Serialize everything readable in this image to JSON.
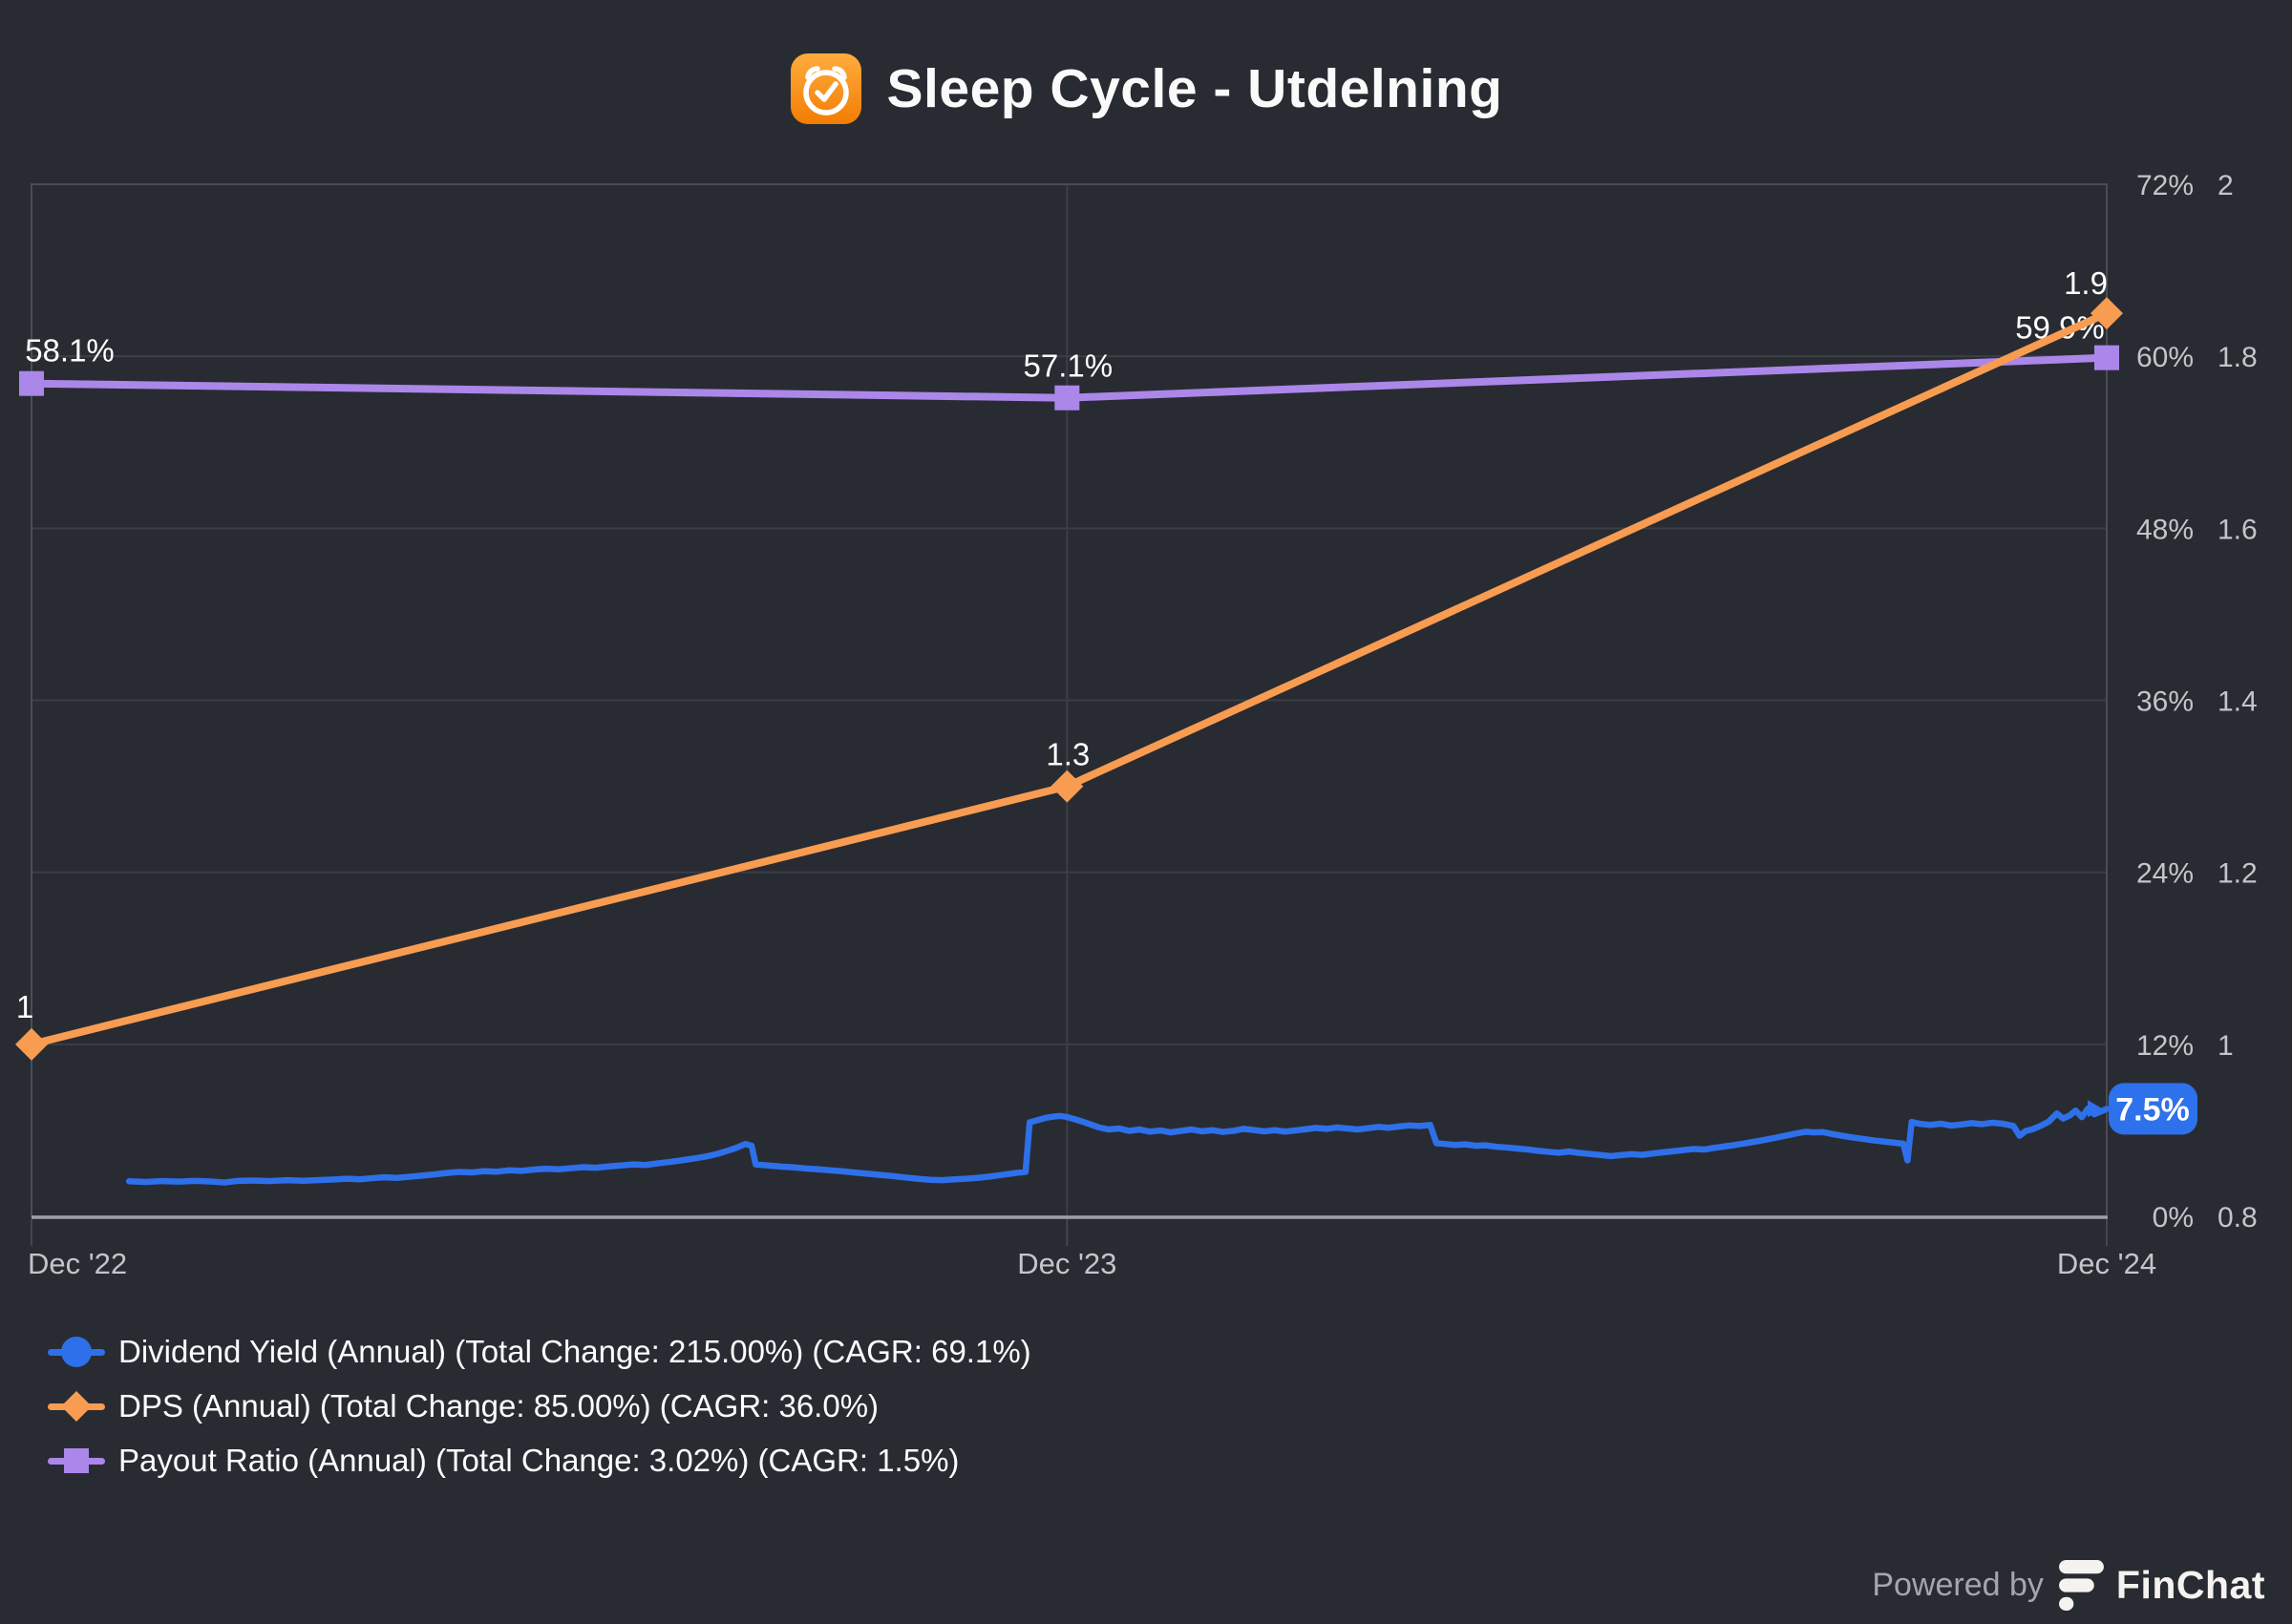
{
  "title": {
    "text": "Sleep Cycle - Utdelning",
    "icon": "sleep-cycle-app-icon"
  },
  "colors": {
    "background": "#292B32",
    "plot_border": "#4B4D55",
    "gridline": "#3C3E45",
    "axis_line": "#9DA0A6",
    "tick_mark": "#44464C",
    "tick_label": "#C3C5CA",
    "data_label": "#FFFFFF",
    "dividend_yield": "#2E70E9",
    "dps": "#F89C52",
    "payout_ratio": "#AB87E9",
    "badge_bg": "#2D71EC",
    "badge_text": "#FFFFFF"
  },
  "chart_data": {
    "type": "line",
    "title": "Sleep Cycle - Utdelning",
    "x_axis": {
      "labels": [
        {
          "text": "Dec '22",
          "pos": 0,
          "align": "start"
        },
        {
          "text": "Dec '23",
          "pos": 0.499,
          "align": "middle"
        },
        {
          "text": "Dec '24",
          "pos": 1,
          "align": "middle"
        }
      ]
    },
    "y_axis_percent": {
      "min": 0,
      "max": 72,
      "tick_values": [
        0,
        12,
        24,
        36,
        48,
        60,
        72
      ],
      "tick_labels": [
        "0%",
        "12%",
        "24%",
        "36%",
        "48%",
        "60%",
        "72%"
      ],
      "side": "right",
      "grid": true
    },
    "y_axis_dps": {
      "min": 0.8,
      "max": 2,
      "tick_values": [
        0.8,
        1,
        1.2,
        1.4,
        1.6,
        1.8,
        2
      ],
      "tick_labels": [
        "0.8",
        "1",
        "1.2",
        "1.4",
        "1.6",
        "1.8",
        "2"
      ],
      "side": "right",
      "grid": false
    },
    "series": [
      {
        "id": "dividend-yield",
        "name": "Dividend Yield (Annual)",
        "legend_label": "Dividend Yield (Annual) (Total Change: 215.00%) (CAGR: 69.1%)",
        "axis": "percent",
        "marker": "circle",
        "color_key": "dividend_yield",
        "line_width": 6.5,
        "end_badge": {
          "text": "7.5%"
        },
        "points": [
          [
            0.047,
            2.45
          ],
          [
            0.055,
            2.4
          ],
          [
            0.063,
            2.46
          ],
          [
            0.071,
            2.42
          ],
          [
            0.079,
            2.47
          ],
          [
            0.087,
            2.42
          ],
          [
            0.093,
            2.36
          ],
          [
            0.099,
            2.47
          ],
          [
            0.107,
            2.5
          ],
          [
            0.115,
            2.46
          ],
          [
            0.123,
            2.52
          ],
          [
            0.131,
            2.48
          ],
          [
            0.139,
            2.53
          ],
          [
            0.146,
            2.57
          ],
          [
            0.152,
            2.62
          ],
          [
            0.158,
            2.58
          ],
          [
            0.164,
            2.66
          ],
          [
            0.17,
            2.72
          ],
          [
            0.176,
            2.68
          ],
          [
            0.182,
            2.76
          ],
          [
            0.188,
            2.84
          ],
          [
            0.194,
            2.92
          ],
          [
            0.2,
            3.02
          ],
          [
            0.206,
            3.1
          ],
          [
            0.212,
            3.06
          ],
          [
            0.218,
            3.15
          ],
          [
            0.224,
            3.11
          ],
          [
            0.23,
            3.21
          ],
          [
            0.236,
            3.17
          ],
          [
            0.242,
            3.26
          ],
          [
            0.248,
            3.32
          ],
          [
            0.254,
            3.28
          ],
          [
            0.26,
            3.36
          ],
          [
            0.266,
            3.43
          ],
          [
            0.272,
            3.39
          ],
          [
            0.278,
            3.48
          ],
          [
            0.284,
            3.55
          ],
          [
            0.29,
            3.62
          ],
          [
            0.296,
            3.58
          ],
          [
            0.302,
            3.7
          ],
          [
            0.308,
            3.8
          ],
          [
            0.314,
            3.92
          ],
          [
            0.32,
            4.05
          ],
          [
            0.326,
            4.2
          ],
          [
            0.331,
            4.38
          ],
          [
            0.336,
            4.6
          ],
          [
            0.34,
            4.8
          ],
          [
            0.344,
            5.05
          ],
          [
            0.347,
            4.92
          ],
          [
            0.349,
            3.62
          ],
          [
            0.355,
            3.55
          ],
          [
            0.361,
            3.47
          ],
          [
            0.367,
            3.42
          ],
          [
            0.373,
            3.34
          ],
          [
            0.379,
            3.28
          ],
          [
            0.385,
            3.21
          ],
          [
            0.391,
            3.14
          ],
          [
            0.397,
            3.05
          ],
          [
            0.403,
            2.97
          ],
          [
            0.409,
            2.89
          ],
          [
            0.415,
            2.81
          ],
          [
            0.421,
            2.71
          ],
          [
            0.427,
            2.62
          ],
          [
            0.433,
            2.55
          ],
          [
            0.439,
            2.52
          ],
          [
            0.445,
            2.58
          ],
          [
            0.451,
            2.63
          ],
          [
            0.457,
            2.7
          ],
          [
            0.463,
            2.8
          ],
          [
            0.469,
            2.92
          ],
          [
            0.475,
            3.04
          ],
          [
            0.479,
            3.1
          ],
          [
            0.481,
            6.55
          ],
          [
            0.485,
            6.72
          ],
          [
            0.489,
            6.88
          ],
          [
            0.493,
            6.97
          ],
          [
            0.496,
            7.0
          ],
          [
            0.499,
            6.93
          ],
          [
            0.504,
            6.72
          ],
          [
            0.509,
            6.48
          ],
          [
            0.514,
            6.22
          ],
          [
            0.519,
            6.06
          ],
          [
            0.524,
            6.13
          ],
          [
            0.529,
            5.96
          ],
          [
            0.534,
            6.06
          ],
          [
            0.539,
            5.91
          ],
          [
            0.544,
            5.99
          ],
          [
            0.549,
            5.86
          ],
          [
            0.554,
            5.96
          ],
          [
            0.559,
            6.06
          ],
          [
            0.564,
            5.93
          ],
          [
            0.569,
            6.01
          ],
          [
            0.574,
            5.89
          ],
          [
            0.579,
            5.96
          ],
          [
            0.584,
            6.1
          ],
          [
            0.589,
            6.02
          ],
          [
            0.594,
            5.93
          ],
          [
            0.599,
            6.01
          ],
          [
            0.604,
            5.91
          ],
          [
            0.609,
            5.99
          ],
          [
            0.614,
            6.08
          ],
          [
            0.619,
            6.17
          ],
          [
            0.624,
            6.1
          ],
          [
            0.629,
            6.2
          ],
          [
            0.634,
            6.13
          ],
          [
            0.639,
            6.06
          ],
          [
            0.644,
            6.15
          ],
          [
            0.649,
            6.24
          ],
          [
            0.654,
            6.18
          ],
          [
            0.659,
            6.27
          ],
          [
            0.664,
            6.34
          ],
          [
            0.669,
            6.3
          ],
          [
            0.674,
            6.37
          ],
          [
            0.677,
            5.1
          ],
          [
            0.681,
            5.05
          ],
          [
            0.686,
            4.98
          ],
          [
            0.691,
            5.02
          ],
          [
            0.696,
            4.92
          ],
          [
            0.701,
            4.95
          ],
          [
            0.706,
            4.85
          ],
          [
            0.711,
            4.8
          ],
          [
            0.716,
            4.73
          ],
          [
            0.721,
            4.66
          ],
          [
            0.726,
            4.57
          ],
          [
            0.731,
            4.5
          ],
          [
            0.736,
            4.44
          ],
          [
            0.741,
            4.52
          ],
          [
            0.746,
            4.42
          ],
          [
            0.751,
            4.35
          ],
          [
            0.756,
            4.28
          ],
          [
            0.761,
            4.2
          ],
          [
            0.766,
            4.27
          ],
          [
            0.771,
            4.34
          ],
          [
            0.776,
            4.29
          ],
          [
            0.781,
            4.38
          ],
          [
            0.786,
            4.46
          ],
          [
            0.791,
            4.54
          ],
          [
            0.796,
            4.62
          ],
          [
            0.801,
            4.7
          ],
          [
            0.806,
            4.66
          ],
          [
            0.811,
            4.78
          ],
          [
            0.816,
            4.88
          ],
          [
            0.821,
            4.98
          ],
          [
            0.826,
            5.1
          ],
          [
            0.831,
            5.22
          ],
          [
            0.836,
            5.36
          ],
          [
            0.841,
            5.5
          ],
          [
            0.846,
            5.65
          ],
          [
            0.851,
            5.8
          ],
          [
            0.855,
            5.9
          ],
          [
            0.859,
            5.85
          ],
          [
            0.863,
            5.88
          ],
          [
            0.868,
            5.73
          ],
          [
            0.873,
            5.61
          ],
          [
            0.878,
            5.49
          ],
          [
            0.883,
            5.39
          ],
          [
            0.888,
            5.29
          ],
          [
            0.893,
            5.21
          ],
          [
            0.898,
            5.13
          ],
          [
            0.902,
            5.06
          ],
          [
            0.904,
            3.9
          ],
          [
            0.906,
            6.58
          ],
          [
            0.91,
            6.45
          ],
          [
            0.915,
            6.38
          ],
          [
            0.92,
            6.46
          ],
          [
            0.925,
            6.33
          ],
          [
            0.93,
            6.41
          ],
          [
            0.935,
            6.5
          ],
          [
            0.94,
            6.43
          ],
          [
            0.945,
            6.53
          ],
          [
            0.95,
            6.46
          ],
          [
            0.955,
            6.31
          ],
          [
            0.958,
            5.62
          ],
          [
            0.961,
            5.96
          ],
          [
            0.964,
            6.06
          ],
          [
            0.968,
            6.3
          ],
          [
            0.972,
            6.6
          ],
          [
            0.976,
            7.18
          ],
          [
            0.979,
            6.82
          ],
          [
            0.982,
            7.02
          ],
          [
            0.985,
            7.38
          ],
          [
            0.988,
            6.92
          ],
          [
            0.991,
            7.52
          ],
          [
            0.994,
            7.12
          ],
          [
            0.997,
            7.3
          ],
          [
            1.0,
            7.5
          ]
        ]
      },
      {
        "id": "dps",
        "name": "DPS (Annual)",
        "legend_label": "DPS (Annual) (Total Change: 85.00%) (CAGR: 36.0%)",
        "axis": "dps",
        "marker": "diamond",
        "color_key": "dps",
        "line_width": 8,
        "points": [
          [
            0,
            1.0
          ],
          [
            0.499,
            1.3
          ],
          [
            1,
            1.85
          ]
        ],
        "point_labels": [
          {
            "text": "1",
            "dx": -7,
            "dy": -28
          },
          {
            "text": "1.3",
            "dx": 1,
            "dy": -22
          },
          {
            "text": "1.9",
            "dx": -22,
            "dy": -20
          }
        ]
      },
      {
        "id": "payout-ratio",
        "name": "Payout Ratio (Annual)",
        "legend_label": "Payout Ratio (Annual) (Total Change: 3.02%) (CAGR: 1.5%)",
        "axis": "percent",
        "marker": "square",
        "color_key": "payout_ratio",
        "line_width": 8,
        "points": [
          [
            0,
            58.1
          ],
          [
            0.499,
            57.1
          ],
          [
            1,
            59.9
          ]
        ],
        "point_labels": [
          {
            "text": "58.1%",
            "dx": 40,
            "dy": -23
          },
          {
            "text": "57.1%",
            "dx": 1,
            "dy": -22
          },
          {
            "text": "59.9%",
            "dx": -49,
            "dy": -20
          }
        ]
      }
    ]
  },
  "footer": {
    "powered_by": "Powered by",
    "brand": "FinChat"
  }
}
